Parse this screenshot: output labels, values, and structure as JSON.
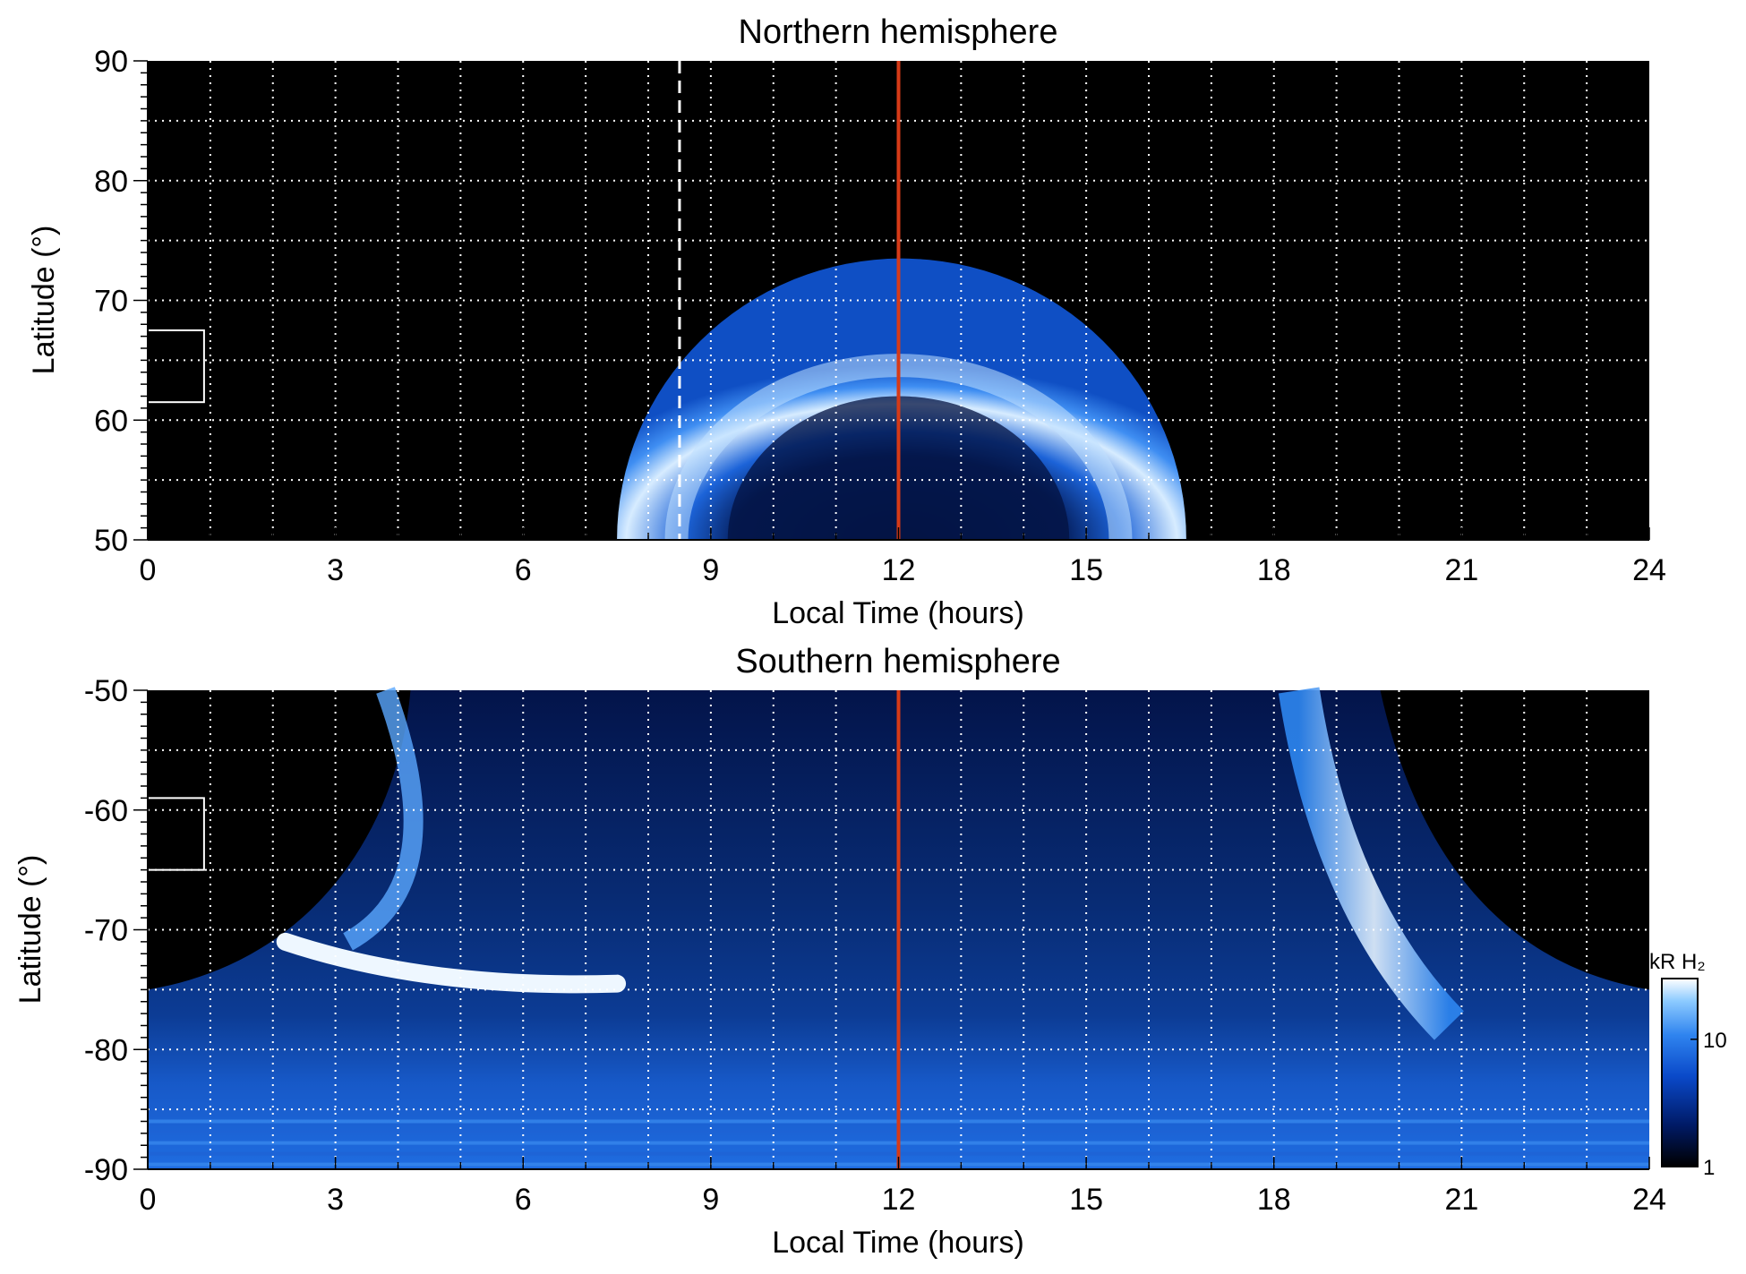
{
  "chart_data": [
    {
      "type": "heatmap",
      "title": "Northern hemisphere",
      "xlabel": "Local Time (hours)",
      "ylabel": "Latitude (°)",
      "xlim": [
        0,
        24
      ],
      "ylim": [
        50,
        90
      ],
      "xticks": [
        0,
        3,
        6,
        9,
        12,
        15,
        18,
        21,
        24
      ],
      "yticks": [
        50,
        60,
        70,
        80,
        90
      ],
      "grid": true,
      "grid_x": [
        1,
        2,
        3,
        4,
        5,
        6,
        7,
        8,
        9,
        10,
        11,
        12,
        13,
        14,
        15,
        16,
        17,
        18,
        19,
        20,
        21,
        22,
        23
      ],
      "grid_y": [
        55,
        60,
        65,
        70,
        75,
        80,
        85
      ],
      "noon_line": 12,
      "noon_line_color": "#d63a17",
      "dashed_line": 8.5,
      "box": {
        "x0": 0,
        "x1": 0.9,
        "y0": 61.5,
        "y1": 67.5
      },
      "emission": {
        "region_local_time": [
          7.5,
          16.6
        ],
        "oval_center_local_time": 12.0,
        "oval_peak_latitude": 67,
        "oval_edge_latitude": 73.5,
        "inner_dark_latitude": 62
      }
    },
    {
      "type": "heatmap",
      "title": "Southern hemisphere",
      "xlabel": "Local Time (hours)",
      "ylabel": "Latitude (°)",
      "xlim": [
        0,
        24
      ],
      "ylim": [
        -90,
        -50
      ],
      "xticks": [
        0,
        3,
        6,
        9,
        12,
        15,
        18,
        21,
        24
      ],
      "yticks": [
        -90,
        -80,
        -70,
        -60,
        -50
      ],
      "grid": true,
      "grid_x": [
        1,
        2,
        3,
        4,
        5,
        6,
        7,
        8,
        9,
        10,
        11,
        12,
        13,
        14,
        15,
        16,
        17,
        18,
        19,
        20,
        21,
        22,
        23
      ],
      "grid_y": [
        -85,
        -80,
        -75,
        -70,
        -65,
        -60,
        -55
      ],
      "noon_line": 12,
      "noon_line_color": "#d63a17",
      "box": {
        "x0": 0,
        "x1": 0.9,
        "y0": -65,
        "y1": -59
      },
      "emission": {
        "region_local_time": [
          0,
          24
        ],
        "oval_peak_latitude": -73.5,
        "dawn_arc_local_time": 5.5,
        "dusk_arc_local_time": 18.5
      }
    }
  ],
  "colorbar": {
    "label": "kR H₂",
    "ticks": [
      {
        "value": 1,
        "label": "1"
      },
      {
        "value": 10,
        "label": "10"
      }
    ],
    "range": [
      1,
      30
    ],
    "scale": "log",
    "colors": [
      "#000000",
      "#001a66",
      "#0a49c9",
      "#2f84ef",
      "#8ccaff",
      "#ffffff"
    ]
  }
}
